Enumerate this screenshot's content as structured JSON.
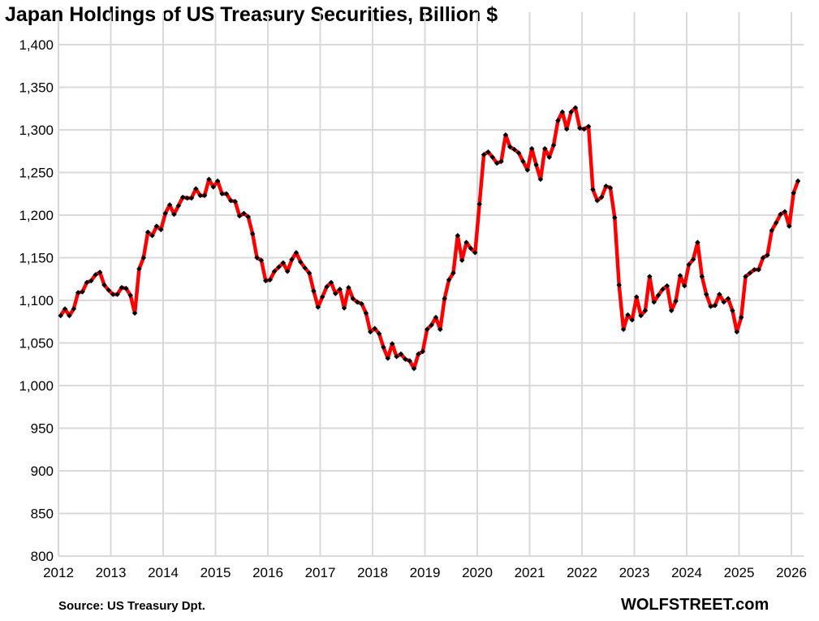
{
  "chart_data": {
    "type": "line",
    "title": "Japan Holdings of US Treasury Securities, Billion $",
    "source": "Source: US Treasury  Dpt.",
    "brand": "WOLFSTREET.com",
    "xlabel": "",
    "ylabel": "",
    "ylim": [
      800,
      1400
    ],
    "xlim": [
      2012,
      2026
    ],
    "grid": true,
    "line_color": "#ff0000",
    "marker_color": "#000000",
    "y_ticks": [
      "800",
      "850",
      "900",
      "950",
      "1,000",
      "1,050",
      "1,100",
      "1,150",
      "1,200",
      "1,250",
      "1,300",
      "1,350",
      "1,400"
    ],
    "x_ticks": [
      "2012",
      "2013",
      "2014",
      "2015",
      "2016",
      "2017",
      "2018",
      "2019",
      "2020",
      "2021",
      "2022",
      "2023",
      "2024",
      "2025",
      "2026"
    ],
    "series": [
      {
        "start": "2012-01",
        "frequency": "monthly",
        "values": [
          1082,
          1090,
          1082,
          1090,
          1109,
          1110,
          1121,
          1123,
          1130,
          1133,
          1118,
          1112,
          1107,
          1107,
          1115,
          1114,
          1106,
          1085,
          1137,
          1150,
          1180,
          1176,
          1187,
          1183,
          1202,
          1212,
          1201,
          1211,
          1221,
          1220,
          1220,
          1231,
          1223,
          1223,
          1242,
          1233,
          1240,
          1225,
          1225,
          1217,
          1216,
          1199,
          1202,
          1198,
          1178,
          1150,
          1147,
          1123,
          1124,
          1134,
          1139,
          1144,
          1134,
          1148,
          1156,
          1145,
          1138,
          1132,
          1111,
          1092,
          1104,
          1116,
          1121,
          1108,
          1113,
          1091,
          1115,
          1102,
          1098,
          1096,
          1085,
          1063,
          1067,
          1061,
          1045,
          1032,
          1049,
          1034,
          1037,
          1031,
          1029,
          1020,
          1037,
          1040,
          1066,
          1071,
          1080,
          1066,
          1102,
          1124,
          1132,
          1176,
          1147,
          1168,
          1161,
          1156,
          1213,
          1271,
          1274,
          1268,
          1261,
          1263,
          1294,
          1280,
          1277,
          1273,
          1263,
          1253,
          1278,
          1259,
          1242,
          1278,
          1268,
          1282,
          1311,
          1321,
          1301,
          1321,
          1326,
          1302,
          1301,
          1304,
          1230,
          1217,
          1221,
          1234,
          1232,
          1197,
          1118,
          1066,
          1083,
          1077,
          1104,
          1082,
          1088,
          1128,
          1098,
          1106,
          1113,
          1117,
          1088,
          1099,
          1129,
          1117,
          1142,
          1148,
          1168,
          1128,
          1107,
          1093,
          1094,
          1107,
          1098,
          1102,
          1088,
          1063,
          1080,
          1128,
          1132,
          1136,
          1136,
          1150,
          1153,
          1182,
          1191,
          1201,
          1204,
          1187,
          1226,
          1240
        ]
      }
    ]
  }
}
